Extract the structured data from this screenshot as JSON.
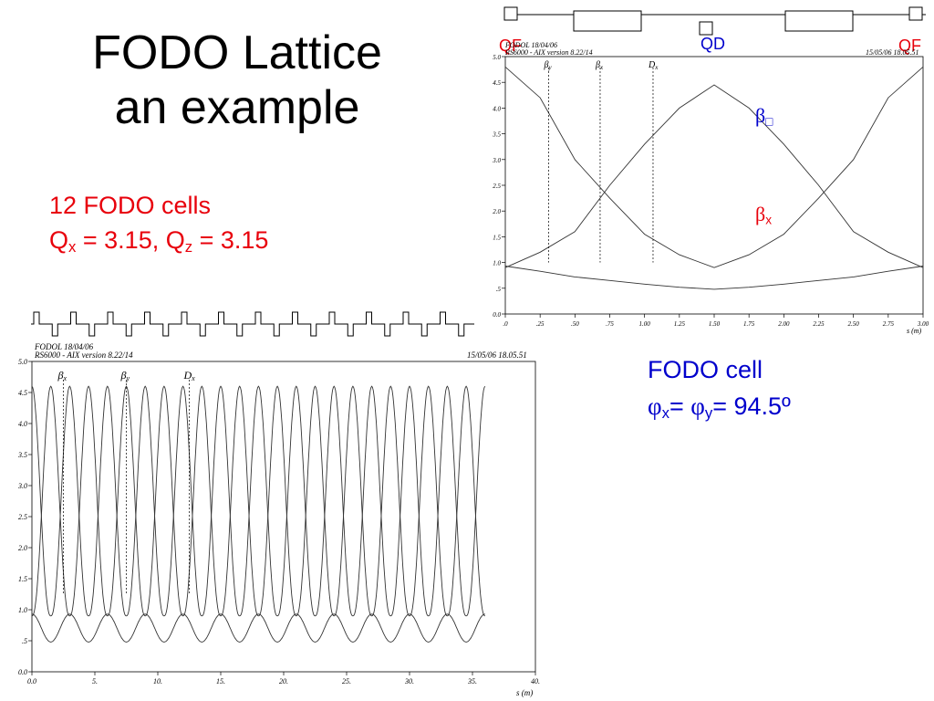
{
  "slide": {
    "title_line1": "FODO Lattice",
    "title_line2": "an example",
    "cells_text": "12 FODO cells",
    "tune_parts": {
      "q": "Q",
      "x": "x",
      "eq1": " = 3.15, Q",
      "z": "z",
      "eq2": " = 3.15"
    },
    "cell_label": "FODO cell",
    "phase_parts": {
      "phi": "φ",
      "x": "x",
      "mid": "= ",
      "y": "y",
      "end": "= 94.5º"
    },
    "beta_y_label": {
      "beta": "β",
      "sub": "□"
    },
    "beta_x_label": {
      "beta": "β",
      "sub": "x"
    }
  },
  "colors": {
    "text": "#000000",
    "red": "#e8000b",
    "blue": "#0000cc",
    "curve": "#333333"
  },
  "lattice_labels": {
    "left": "QF",
    "center": "QD",
    "right": "QF"
  },
  "chart_data": [
    {
      "type": "line",
      "header_left_1": "FODOL 18/04/06",
      "header_left_2": "RS6000 - AIX version 8.22/14",
      "header_right": "15/05/06 18.05.51",
      "markers": [
        {
          "label": "β",
          "sub": "y",
          "x": 0.18
        },
        {
          "label": "β",
          "sub": "x",
          "x": 0.55
        },
        {
          "label": "D",
          "sub": "x",
          "x": 0.93
        }
      ],
      "xlabel": "s (m)",
      "xlim": [
        0,
        3.0
      ],
      "ylim": [
        0,
        5.0
      ],
      "xticks": [
        ".0",
        ".25",
        ".50",
        ".75",
        "1.00",
        "1.25",
        "1.50",
        "1.75",
        "2.00",
        "2.25",
        "2.50",
        "2.75",
        "3.00"
      ],
      "yticks": [
        "0.0",
        ".5",
        "1.0",
        "1.5",
        "2.0",
        "2.5",
        "3.0",
        "3.5",
        "4.0",
        "4.5",
        "5.0"
      ],
      "series": [
        {
          "x": [
            0,
            0.25,
            0.5,
            0.75,
            1.0,
            1.25,
            1.5,
            1.75,
            2.0,
            2.25,
            2.5,
            2.75,
            3.0
          ],
          "values": [
            4.8,
            4.2,
            3.0,
            2.25,
            1.55,
            1.15,
            0.9,
            1.15,
            1.55,
            2.25,
            3.0,
            4.2,
            4.8
          ]
        },
        {
          "x": [
            0,
            0.25,
            0.5,
            0.75,
            1.0,
            1.25,
            1.5,
            1.75,
            2.0,
            2.25,
            2.5,
            2.75,
            3.0
          ],
          "values": [
            0.9,
            1.2,
            1.6,
            2.5,
            3.3,
            4.0,
            4.45,
            4.0,
            3.3,
            2.5,
            1.6,
            1.2,
            0.9
          ]
        },
        {
          "x": [
            0,
            0.25,
            0.5,
            0.75,
            1.0,
            1.25,
            1.5,
            1.75,
            2.0,
            2.25,
            2.5,
            2.75,
            3.0
          ],
          "values": [
            0.93,
            0.83,
            0.72,
            0.65,
            0.58,
            0.52,
            0.48,
            0.52,
            0.58,
            0.65,
            0.72,
            0.83,
            0.93
          ]
        }
      ]
    },
    {
      "type": "line",
      "header_left_1": "FODOL 18/04/06",
      "header_left_2": "RS6000 - AIX version 8.22/14",
      "header_right": "15/05/06 18.05.51",
      "markers": [
        {
          "label": "β",
          "sub": "x",
          "x": 2.5
        },
        {
          "label": "β",
          "sub": "y",
          "x": 7.5
        },
        {
          "label": "D",
          "sub": "x",
          "x": 12.5
        }
      ],
      "xlabel": "s (m)",
      "xlim": [
        0,
        40
      ],
      "ylim": [
        0,
        5.0
      ],
      "xticks": [
        "0.0",
        "5.",
        "10.",
        "15.",
        "20.",
        "25.",
        "30.",
        "35.",
        "40."
      ],
      "yticks": [
        "0.0",
        ".5",
        "1.0",
        "1.5",
        "2.0",
        "2.5",
        "3.0",
        "3.5",
        "4.0",
        "4.5",
        "5.0"
      ],
      "cells": 12,
      "cell_length": 3.0,
      "beta_max": 4.6,
      "beta_min": 0.9,
      "dispersion_max": 0.93,
      "dispersion_min": 0.48
    }
  ]
}
